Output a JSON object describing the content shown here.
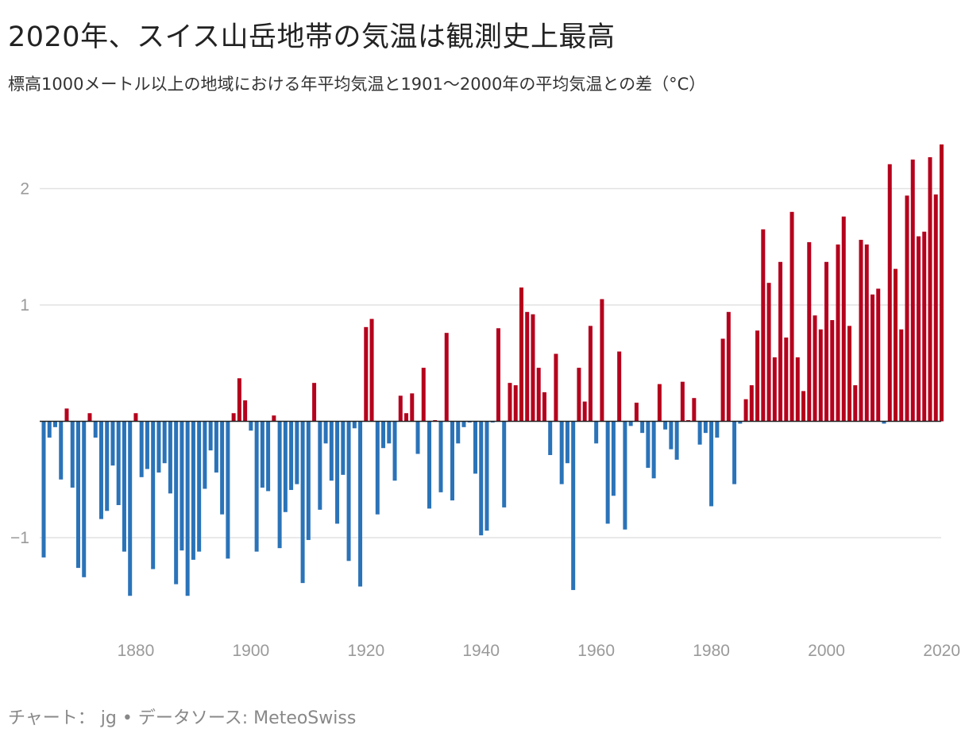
{
  "title": "2020年、スイス山岳地帯の気温は観測史上最高",
  "subtitle": "標高1000メートル以上の地域における年平均気温と1901～2000年の平均気温との差（°C）",
  "footer": {
    "chart_label": "チャート：",
    "author": "jg",
    "separator": "•",
    "source_label": "データソース:",
    "source": "MeteoSwiss"
  },
  "colors": {
    "positive": "#b5001c",
    "negative": "#2a73b8",
    "grid": "#e2e2e2",
    "axis": "#222222",
    "tick_text": "#9a9a9a"
  },
  "chart_data": {
    "type": "bar",
    "title": "2020年、スイス山岳地帯の気温は観測史上最高",
    "subtitle": "標高1000メートル以上の地域における年平均気温と1901～2000年の平均気温との差（°C）",
    "xlabel": "",
    "ylabel": "",
    "x_start": 1864,
    "x_end": 2020,
    "ylim": [
      -1.75,
      2.45
    ],
    "y_ticks": [
      -1,
      2,
      1
    ],
    "y_tick_labels": [
      "−1",
      "2",
      "1"
    ],
    "x_ticks": [
      1880,
      1900,
      1920,
      1940,
      1960,
      1980,
      2000,
      2020
    ],
    "x_tick_labels": [
      "1880",
      "1900",
      "1920",
      "1940",
      "1960",
      "1980",
      "2000",
      "2020"
    ],
    "grid": true,
    "legend": "none",
    "values": [
      -1.17,
      -0.14,
      -0.05,
      -0.5,
      0.11,
      -0.57,
      -1.26,
      -1.34,
      0.07,
      -0.14,
      -0.84,
      -0.77,
      -0.38,
      -0.72,
      -1.12,
      -1.5,
      0.07,
      -0.48,
      -0.41,
      -1.27,
      -0.44,
      -0.36,
      -0.62,
      -1.4,
      -1.11,
      -1.5,
      -1.19,
      -1.12,
      -0.58,
      -0.25,
      -0.44,
      -0.8,
      -1.18,
      0.07,
      0.37,
      0.18,
      -0.08,
      -1.12,
      -0.57,
      -0.6,
      0.05,
      -1.09,
      -0.78,
      -0.59,
      -0.54,
      -1.39,
      -1.02,
      0.33,
      -0.76,
      -0.19,
      -0.51,
      -0.88,
      -0.46,
      -1.2,
      -0.06,
      -1.42,
      0.81,
      0.88,
      -0.8,
      -0.23,
      -0.19,
      -0.51,
      0.22,
      0.07,
      0.24,
      -0.28,
      0.46,
      -0.75,
      0.01,
      -0.61,
      0.76,
      -0.68,
      -0.19,
      -0.05,
      -0.01,
      -0.45,
      -0.98,
      -0.94,
      -0.01,
      0.8,
      -0.74,
      0.33,
      0.31,
      1.15,
      0.94,
      0.92,
      0.46,
      0.25,
      -0.29,
      0.58,
      -0.54,
      -0.36,
      -1.45,
      0.46,
      0.17,
      0.82,
      -0.19,
      1.05,
      -0.88,
      -0.64,
      0.6,
      -0.93,
      -0.04,
      0.16,
      -0.1,
      -0.4,
      -0.49,
      0.32,
      -0.07,
      -0.24,
      -0.33,
      0.34,
      0.01,
      0.2,
      -0.2,
      -0.1,
      -0.73,
      -0.14,
      0.71,
      0.94,
      -0.54,
      -0.02,
      0.19,
      0.31,
      0.78,
      1.65,
      1.19,
      0.55,
      1.37,
      0.72,
      1.8,
      0.55,
      0.26,
      1.54,
      0.91,
      0.79,
      1.37,
      0.87,
      1.52,
      1.76,
      0.82,
      0.31,
      1.56,
      1.52,
      1.09,
      1.14,
      -0.02,
      2.21,
      1.31,
      0.79,
      1.94,
      2.25,
      1.59,
      1.63,
      2.27,
      1.95,
      2.38
    ]
  }
}
